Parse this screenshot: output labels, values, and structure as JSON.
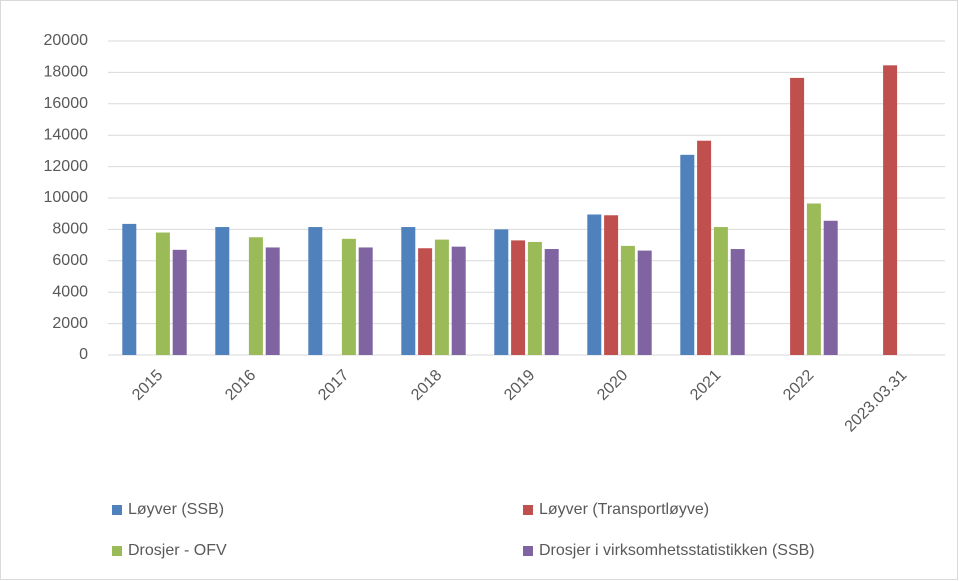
{
  "chart_data": {
    "type": "bar",
    "categories": [
      "2015",
      "2016",
      "2017",
      "2018",
      "2019",
      "2020",
      "2021",
      "2022",
      "2023.03.31"
    ],
    "series": [
      {
        "name": "Løyver (SSB)",
        "color": "#4f81bd",
        "values": [
          8350,
          8150,
          8150,
          8150,
          8000,
          8950,
          12750,
          null,
          null
        ]
      },
      {
        "name": "Løyver (Transportløyve)",
        "color": "#c0504d",
        "values": [
          null,
          null,
          null,
          6800,
          7300,
          8900,
          13650,
          17650,
          18450
        ]
      },
      {
        "name": "Drosjer - OFV",
        "color": "#9bbb59",
        "values": [
          7800,
          7500,
          7400,
          7350,
          7200,
          6950,
          8150,
          9650,
          null
        ]
      },
      {
        "name": "Drosjer i virksomhetsstatistikken (SSB)",
        "color": "#8064a2",
        "values": [
          6700,
          6850,
          6850,
          6900,
          6750,
          6650,
          6750,
          8550,
          null
        ]
      }
    ],
    "ylim": [
      0,
      20000
    ],
    "yticks": [
      0,
      2000,
      4000,
      6000,
      8000,
      10000,
      12000,
      14000,
      16000,
      18000,
      20000
    ],
    "grid": true,
    "legend": "bottom"
  }
}
